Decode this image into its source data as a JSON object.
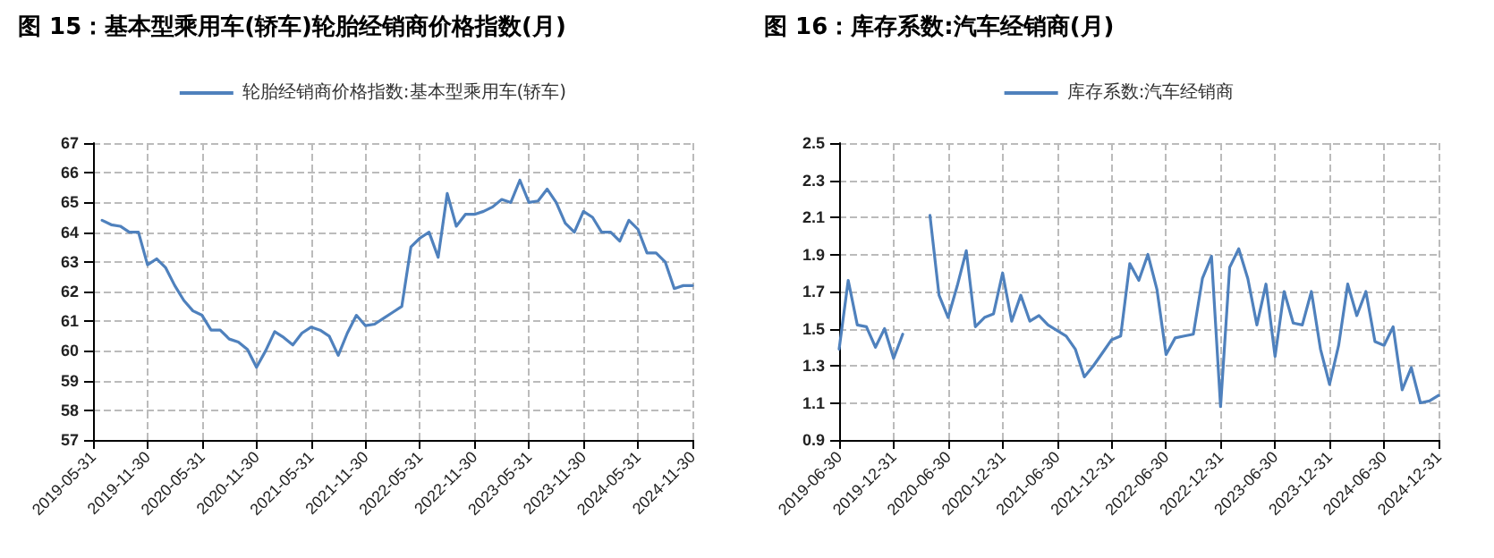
{
  "chart_data": [
    {
      "type": "line",
      "title": "图 15：基本型乘用车(轿车)轮胎经销商价格指数(月)",
      "categories": [
        "2019-05-31",
        null,
        null,
        null,
        null,
        null,
        "2019-11-30",
        null,
        null,
        null,
        null,
        null,
        "2020-05-31",
        null,
        null,
        null,
        null,
        null,
        "2020-11-30",
        null,
        null,
        null,
        null,
        null,
        "2021-05-31",
        null,
        null,
        null,
        null,
        null,
        "2021-11-30",
        null,
        null,
        null,
        null,
        null,
        "2022-05-31",
        null,
        null,
        null,
        null,
        null,
        "2022-11-30",
        null,
        null,
        null,
        null,
        null,
        "2023-05-31",
        null,
        null,
        null,
        null,
        null,
        "2023-11-30",
        null,
        null,
        null,
        null,
        null,
        "2024-05-31",
        null,
        null,
        null,
        null,
        null,
        "2024-11-30"
      ],
      "series": [
        {
          "name": "轮胎经销商价格指数:基本型乘用车(轿车)",
          "color": "#4f81bd",
          "values": [
            null,
            64.4,
            64.25,
            64.2,
            64.0,
            64.0,
            62.9,
            63.1,
            62.8,
            62.2,
            61.7,
            61.35,
            61.2,
            60.7,
            60.7,
            60.4,
            60.3,
            60.05,
            59.45,
            60.0,
            60.65,
            60.45,
            60.2,
            60.6,
            60.8,
            60.7,
            60.5,
            59.85,
            60.6,
            61.2,
            60.85,
            60.9,
            61.1,
            61.3,
            61.5,
            63.5,
            63.8,
            64.0,
            63.15,
            65.3,
            64.2,
            64.6,
            64.6,
            64.7,
            64.85,
            65.1,
            65.0,
            65.75,
            65.0,
            65.05,
            65.45,
            65.0,
            64.3,
            64.0,
            64.7,
            64.5,
            64.0,
            64.0,
            63.7,
            64.4,
            64.1,
            63.3,
            63.3,
            63.0,
            62.1,
            62.2,
            62.2
          ]
        }
      ],
      "ylim": [
        57,
        67
      ],
      "yticks": [
        57,
        58,
        59,
        60,
        61,
        62,
        63,
        64,
        65,
        66,
        67
      ],
      "grid": true,
      "legend": "top",
      "marker": "none",
      "line_style": "solid"
    },
    {
      "type": "line",
      "title": "图 16：库存系数:汽车经销商(月)",
      "categories": [
        "2019-06-30",
        null,
        null,
        null,
        null,
        null,
        "2019-12-31",
        null,
        null,
        null,
        null,
        null,
        "2020-06-30",
        null,
        null,
        null,
        null,
        null,
        "2020-12-31",
        null,
        null,
        null,
        null,
        null,
        "2021-06-30",
        null,
        null,
        null,
        null,
        null,
        "2021-12-31",
        null,
        null,
        null,
        null,
        null,
        "2022-06-30",
        null,
        null,
        null,
        null,
        null,
        "2022-12-31",
        null,
        null,
        null,
        null,
        null,
        "2023-06-30",
        null,
        null,
        null,
        null,
        null,
        "2023-12-31",
        null,
        null,
        null,
        null,
        null,
        "2024-06-30",
        null,
        null,
        null,
        null,
        null,
        "2024-12-31"
      ],
      "series": [
        {
          "name": "库存系数:汽车经销商",
          "color": "#4f81bd",
          "values": [
            1.39,
            1.76,
            1.52,
            1.51,
            1.4,
            1.5,
            1.34,
            1.47,
            null,
            null,
            2.11,
            1.68,
            1.56,
            1.73,
            1.92,
            1.51,
            1.56,
            1.58,
            1.8,
            1.54,
            1.68,
            1.54,
            1.57,
            1.52,
            1.49,
            1.46,
            1.39,
            1.24,
            1.3,
            1.37,
            1.44,
            1.46,
            1.85,
            1.76,
            1.9,
            1.71,
            1.36,
            1.45,
            1.46,
            1.47,
            1.77,
            1.89,
            1.08,
            1.83,
            1.93,
            1.77,
            1.52,
            1.74,
            1.35,
            1.7,
            1.53,
            1.52,
            1.7,
            1.39,
            1.2,
            1.41,
            1.74,
            1.57,
            1.7,
            1.43,
            1.41,
            1.51,
            1.17,
            1.29,
            1.1,
            1.11,
            1.14
          ]
        }
      ],
      "ylim": [
        0.9,
        2.5
      ],
      "yticks": [
        0.9,
        1.1,
        1.3,
        1.5,
        1.7,
        1.9,
        2.1,
        2.3,
        2.5
      ],
      "grid": true,
      "legend": "top",
      "marker": "none",
      "line_style": "solid"
    }
  ]
}
